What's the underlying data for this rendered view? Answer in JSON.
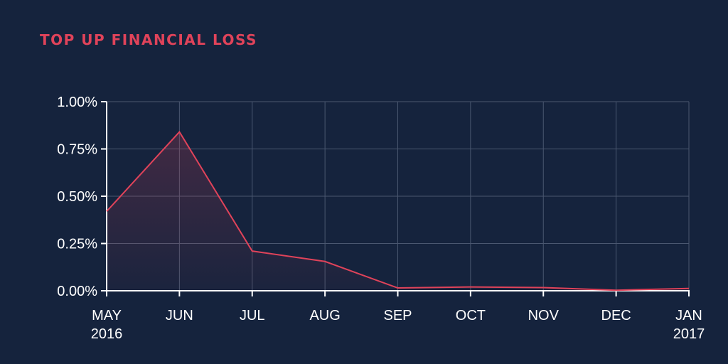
{
  "colors": {
    "background": "#15233d",
    "accent": "#e0435a",
    "grid": "#4a5770",
    "axis": "#ffffff",
    "text": "#ffffff"
  },
  "chart_data": {
    "type": "area",
    "title": "TOP UP FINANCIAL LOSS",
    "xlabel": "",
    "ylabel": "",
    "categories": [
      [
        "MAY",
        "2016"
      ],
      [
        "JUN"
      ],
      [
        "JUL"
      ],
      [
        "AUG"
      ],
      [
        "SEP"
      ],
      [
        "OCT"
      ],
      [
        "NOV"
      ],
      [
        "DEC"
      ],
      [
        "JAN",
        "2017"
      ]
    ],
    "series": [
      {
        "values": [
          0.42,
          0.84,
          0.21,
          0.155,
          0.015,
          0.02,
          0.017,
          0.003,
          0.012
        ]
      }
    ],
    "y_ticks": [
      {
        "value": 0,
        "label": "0.00%"
      },
      {
        "value": 0.25,
        "label": "0.25%"
      },
      {
        "value": 0.5,
        "label": "0.50%"
      },
      {
        "value": 0.75,
        "label": "0.75%"
      },
      {
        "value": 1.0,
        "label": "1.00%"
      }
    ],
    "ylim": [
      0,
      1.0
    ],
    "y_unit": "%",
    "grid": true,
    "legend": "none"
  }
}
